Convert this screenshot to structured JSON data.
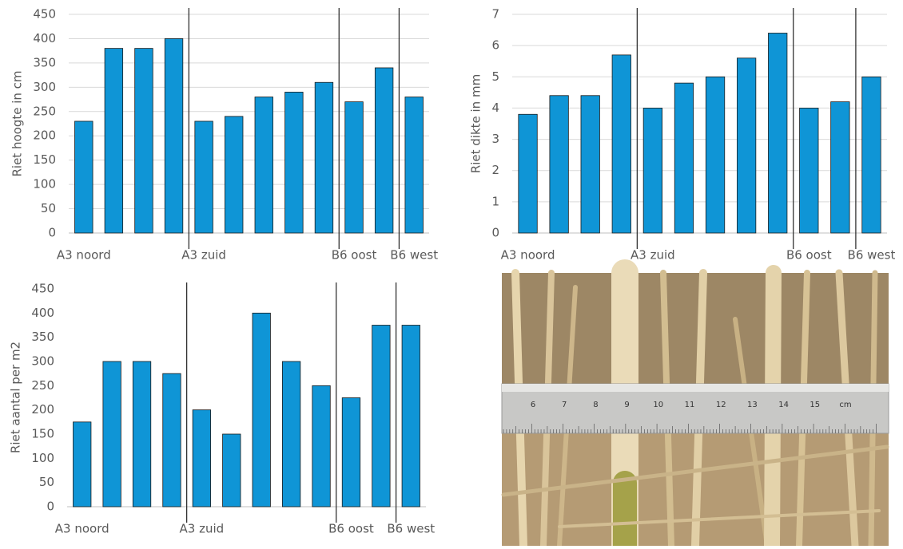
{
  "chart_data": [
    {
      "type": "bar",
      "y_label": "Riet hoogte in cm",
      "categories": [
        "A3 noord",
        null,
        null,
        null,
        "A3 zuid",
        null,
        null,
        null,
        null,
        "B6 oost",
        null,
        "B6 west"
      ],
      "values": [
        230,
        380,
        380,
        400,
        230,
        240,
        280,
        290,
        310,
        270,
        340,
        280
      ],
      "color": "#0f95d6",
      "ylim": [
        0,
        450
      ],
      "yticks": [
        0,
        50,
        100,
        150,
        200,
        250,
        300,
        350,
        400,
        450
      ],
      "grid": true
    },
    {
      "type": "bar",
      "y_label": "Riet dikte in mm",
      "categories": [
        "A3 noord",
        null,
        null,
        null,
        "A3 zuid",
        null,
        null,
        null,
        null,
        "B6 oost",
        null,
        "B6 west"
      ],
      "values": [
        3.8,
        4.4,
        4.4,
        5.7,
        4.0,
        4.8,
        5.0,
        5.6,
        6.4,
        4.0,
        4.2,
        5.0
      ],
      "color": "#0f95d6",
      "ylim": [
        0,
        7
      ],
      "yticks": [
        0,
        1,
        2,
        3,
        4,
        5,
        6,
        7
      ],
      "grid": true
    },
    {
      "type": "bar",
      "y_label": "Riet aantal per m2",
      "categories": [
        "A3 noord",
        null,
        null,
        null,
        "A3 zuid",
        null,
        null,
        null,
        null,
        "B6 oost",
        null,
        "B6 west"
      ],
      "values": [
        175,
        300,
        300,
        275,
        200,
        150,
        400,
        300,
        250,
        225,
        375,
        375
      ],
      "color": "#0f95d6",
      "ylim": [
        0,
        450
      ],
      "yticks": [
        0,
        50,
        100,
        150,
        200,
        250,
        300,
        350,
        400,
        450
      ],
      "grid": false
    }
  ],
  "photo": {
    "ruler_labels": [
      "6",
      "7",
      "8",
      "9",
      "10",
      "11",
      "12",
      "13",
      "14",
      "15",
      "cm"
    ]
  }
}
